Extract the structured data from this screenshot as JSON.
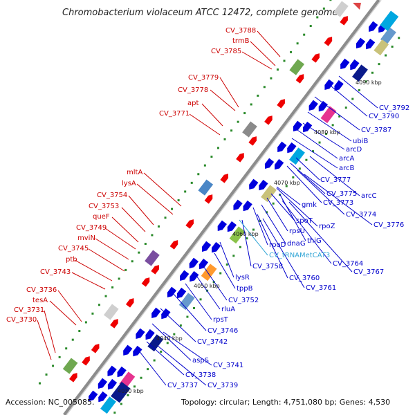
{
  "title": "Chromobacterium violaceum ATCC 12472, complete genome",
  "footer": {
    "accession": "Accession: NC_005085.",
    "summary": "Topology: circular; Length: 4,751,080 bp; Genes: 4,530"
  },
  "colors": {
    "forward_label": "#cc0000",
    "reverse_label": "#0000cc",
    "rna_label": "#33a6d6",
    "backbone": "#8c8c8c",
    "forward_arrow": "#ee0000",
    "reverse_arrow": "#0000dd"
  },
  "kbp_labels": [
    "4030 kbp",
    "4040 kbp",
    "4050 kbp",
    "4060 kbp",
    "4070 kbp",
    "4080 kbp",
    "4090 kbp"
  ],
  "forward_labels": [
    "CV_3788",
    "trmB",
    "CV_3785",
    "CV_3779",
    "CV_3778",
    "apt",
    "CV_3771",
    "mltA",
    "lysA",
    "CV_3754",
    "CV_3753",
    "queF",
    "CV_3749",
    "mviN",
    "CV_3745",
    "ptb",
    "CV_3743",
    "CV_3736",
    "tesA",
    "CV_3731",
    "CV_3730"
  ],
  "reverse_labels": [
    "CV_3792",
    "CV_3790",
    "CV_3787",
    "ubiB",
    "arcD",
    "arcA",
    "arcB",
    "CV_3777",
    "arcC",
    "CV_3775",
    "CV_3773",
    "CV_3774",
    "CV_3776",
    "gmk",
    "spoT",
    "rpoZ",
    "rpsU",
    "thiG",
    "rpoD",
    "dnaG",
    "CV_3764",
    "CV_3767",
    "CV_3758",
    "CV_3760",
    "CV_3761",
    "lysR",
    "tppB",
    "CV_3752",
    "rluA",
    "rpsT",
    "CV_3746",
    "CV_3742",
    "aspS",
    "CV_3741",
    "CV_3738",
    "CV_3739",
    "CV_3737"
  ],
  "rna_labels": [
    "CV_tRNAMetCAT3"
  ]
}
